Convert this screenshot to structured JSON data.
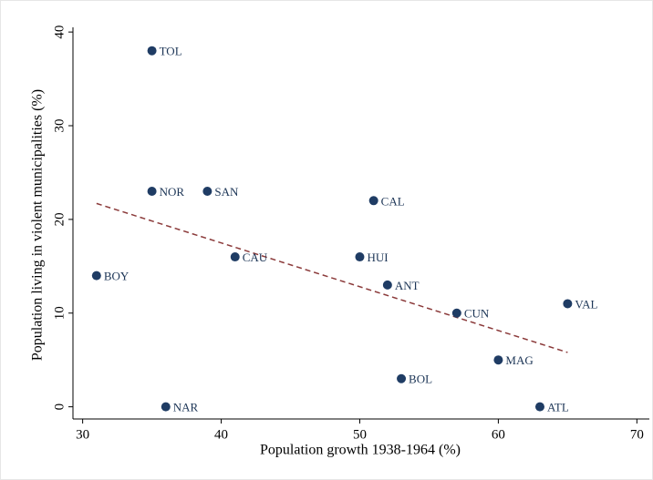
{
  "chart_data": {
    "type": "scatter",
    "x_label": "Population growth 1938-1964 (%)",
    "y_label": "Population living in violent municipalities (%)",
    "labels": [
      "TOL",
      "NOR",
      "SAN",
      "CAL",
      "BOY",
      "CAU",
      "HUI",
      "ANT",
      "CUN",
      "VAL",
      "MAG",
      "BOL",
      "NAR",
      "ATL"
    ],
    "x": [
      35,
      35,
      39,
      51,
      31,
      41,
      50,
      52,
      57,
      65,
      60,
      53,
      36,
      63
    ],
    "values": [
      38,
      23,
      23,
      22,
      14,
      16,
      16,
      13,
      10,
      11,
      5,
      3,
      0,
      0
    ],
    "color": "#1f3c64",
    "fit": {
      "x": [
        31,
        65
      ],
      "values": [
        21.7,
        5.8
      ],
      "color": "#8b3a3a"
    },
    "xlim": [
      29.3,
      70.9
    ],
    "ylim": [
      -1.3,
      40.5
    ],
    "xticks": [
      30,
      40,
      50,
      60,
      70
    ],
    "yticks": [
      0,
      10,
      20,
      30,
      40
    ]
  }
}
